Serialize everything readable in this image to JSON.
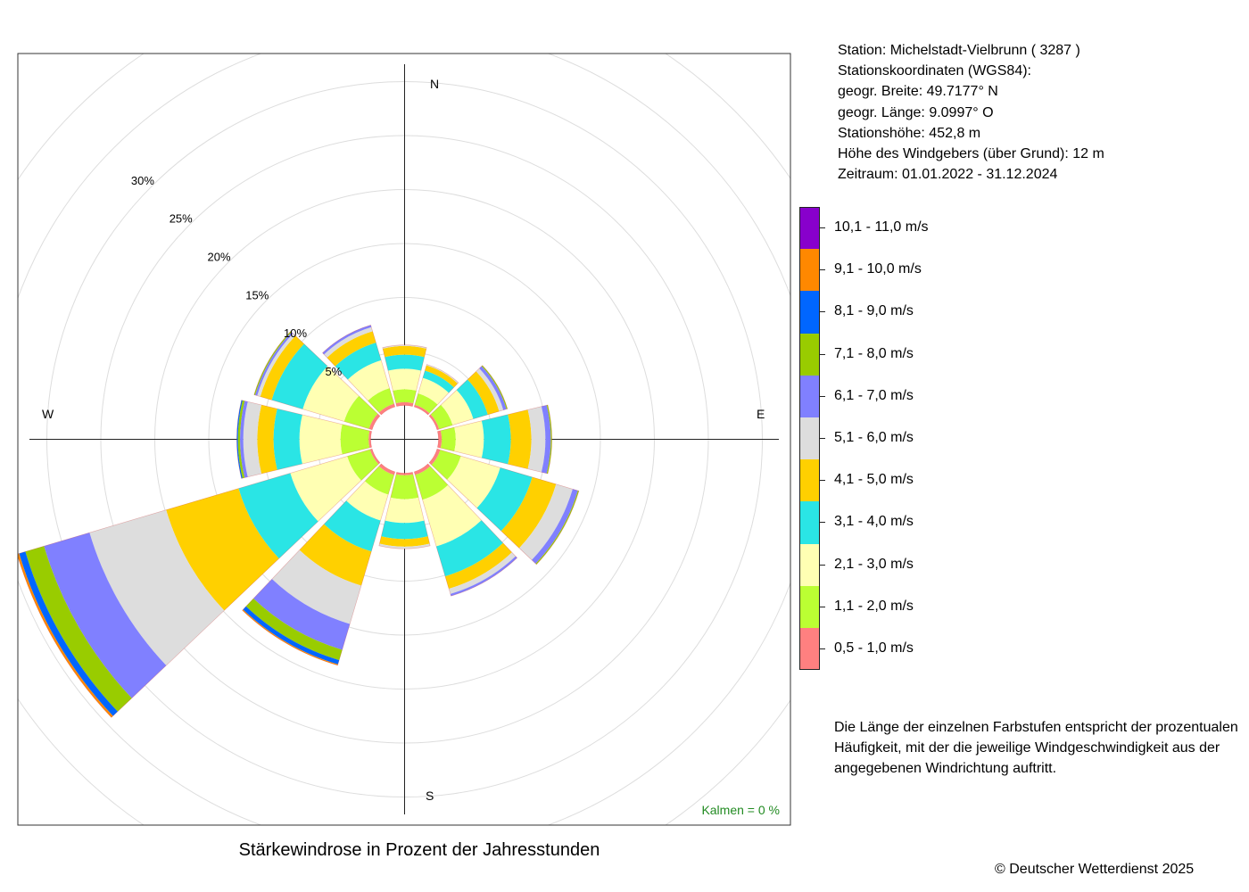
{
  "caption": "Stärkewindrose in Prozent der Jahresstunden",
  "copyright": "© Deutscher Wetterdienst  2025",
  "station_info": [
    "Station:  Michelstadt-Vielbrunn  ( 3287 )",
    "Stationskoordinaten (WGS84):",
    "geogr. Breite: 49.7177° N",
    "geogr. Länge:   9.0997° O",
    "Stationshöhe: 452,8 m",
    "Höhe des Windgebers (über Grund): 12 m",
    "Zeitraum: 01.01.2022 - 31.12.2024"
  ],
  "note": "Die Länge der einzelnen Farbstufen entspricht der prozentualen Häufigkeit, mit der die jeweilige Windgeschwindigkeit aus der angegebenen Windrichtung auftritt.",
  "calm_label": "Kalmen  =  0 %",
  "calm_color": "#228B22",
  "legend": [
    {
      "label": "10,1 - 11,0 m/s",
      "color": "#8800CC"
    },
    {
      "label": "9,1 - 10,0 m/s",
      "color": "#FF8800"
    },
    {
      "label": "8,1 - 9,0 m/s",
      "color": "#0066FF"
    },
    {
      "label": "7,1 - 8,0 m/s",
      "color": "#99CC00"
    },
    {
      "label": "6,1 - 7,0 m/s",
      "color": "#8080FF"
    },
    {
      "label": "5,1 - 6,0 m/s",
      "color": "#DDDDDD"
    },
    {
      "label": "4,1 - 5,0 m/s",
      "color": "#FFD000"
    },
    {
      "label": "3,1 - 4,0 m/s",
      "color": "#2AE5E5"
    },
    {
      "label": "2,1 - 3,0 m/s",
      "color": "#FFFFB3"
    },
    {
      "label": "1,1 - 2,0 m/s",
      "color": "#BBFF33"
    },
    {
      "label": "0,5 - 1,0 m/s",
      "color": "#FF8080"
    }
  ],
  "chart_data": {
    "type": "windrose",
    "title": "Stärkewindrose in Prozent der Jahresstunden",
    "cardinal_labels": [
      "N",
      "E",
      "S",
      "W"
    ],
    "radial_ticks": [
      "5%",
      "10%",
      "15%",
      "20%",
      "25%",
      "30%"
    ],
    "radial_tick_values": [
      5,
      10,
      15,
      20,
      25,
      30
    ],
    "r_max": 30,
    "calm_percent": 0,
    "speed_classes": [
      "0,5 - 1,0 m/s",
      "1,1 - 2,0 m/s",
      "2,1 - 3,0 m/s",
      "3,1 - 4,0 m/s",
      "4,1 - 5,0 m/s",
      "5,1 - 6,0 m/s",
      "6,1 - 7,0 m/s",
      "7,1 - 8,0 m/s",
      "8,1 - 9,0 m/s",
      "9,1 - 10,0 m/s",
      "10,1 - 11,0 m/s"
    ],
    "directions": [
      0,
      30,
      60,
      90,
      120,
      150,
      180,
      210,
      240,
      270,
      300,
      330
    ],
    "sectors": [
      {
        "direction": 0,
        "values": [
          0.3,
          1.2,
          1.9,
          1.3,
          0.8,
          0.1,
          0.0,
          0,
          0,
          0,
          0
        ]
      },
      {
        "direction": 30,
        "values": [
          0.2,
          1.1,
          1.5,
          0.7,
          0.5,
          0.1,
          0.0,
          0,
          0,
          0,
          0
        ]
      },
      {
        "direction": 60,
        "values": [
          0.2,
          1.3,
          2.0,
          1.4,
          1.1,
          0.4,
          0.3,
          0.1,
          0,
          0,
          0
        ]
      },
      {
        "direction": 90,
        "values": [
          0.3,
          1.3,
          2.6,
          2.5,
          1.9,
          1.3,
          0.5,
          0.1,
          0,
          0,
          0
        ]
      },
      {
        "direction": 120,
        "values": [
          0.3,
          2.0,
          3.8,
          3.1,
          2.3,
          1.6,
          0.5,
          0.1,
          0,
          0,
          0
        ]
      },
      {
        "direction": 150,
        "values": [
          0.3,
          2.4,
          4.5,
          2.9,
          1.2,
          0.5,
          0.2,
          0,
          0,
          0,
          0
        ]
      },
      {
        "direction": 180,
        "values": [
          0.2,
          2.2,
          2.2,
          1.5,
          0.7,
          0.2,
          0.0,
          0,
          0,
          0,
          0
        ]
      },
      {
        "direction": 210,
        "values": [
          0.3,
          1.9,
          2.5,
          3.0,
          3.3,
          3.7,
          2.5,
          1.0,
          0.4,
          0.1,
          0
        ]
      },
      {
        "direction": 240,
        "values": [
          0.2,
          2.2,
          5.5,
          5.0,
          7.0,
          7.4,
          4.4,
          1.8,
          0.6,
          0.2,
          0
        ]
      },
      {
        "direction": 270,
        "values": [
          0.2,
          2.6,
          3.8,
          2.4,
          1.5,
          1.3,
          0.3,
          0.2,
          0.1,
          0,
          0
        ]
      },
      {
        "direction": 300,
        "values": [
          0.3,
          2.4,
          4.0,
          3.0,
          1.1,
          0.3,
          0.2,
          0.1,
          0,
          0,
          0
        ]
      },
      {
        "direction": 330,
        "values": [
          0.3,
          1.5,
          2.7,
          1.7,
          1.1,
          0.4,
          0.2,
          0,
          0,
          0,
          0
        ]
      }
    ]
  }
}
